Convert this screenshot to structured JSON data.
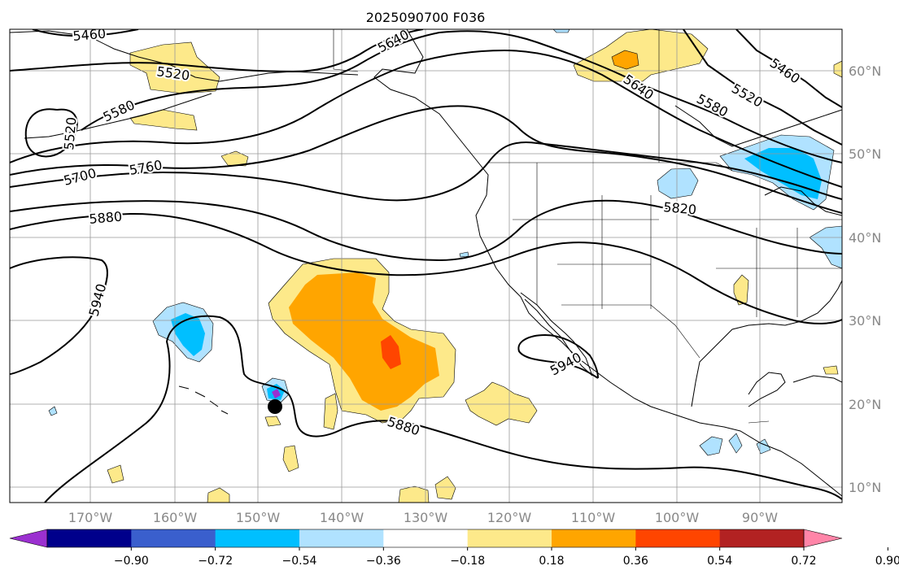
{
  "title": "2025090700 F036",
  "lon_labels": [
    "170°W",
    "160°W",
    "150°W",
    "140°W",
    "130°W",
    "120°W",
    "110°W",
    "100°W",
    "90°W"
  ],
  "lat_labels": [
    "60°N",
    "50°N",
    "40°N",
    "30°N",
    "20°N",
    "10°N"
  ],
  "contour_labels": [
    "5460",
    "5460",
    "5520",
    "5520",
    "5520",
    "5580",
    "5580",
    "5640",
    "5640",
    "5700",
    "5760",
    "5820",
    "5880",
    "5880",
    "5940",
    "5940"
  ],
  "colorbar": {
    "ticks": [
      "−0.90",
      "−0.72",
      "−0.54",
      "−0.36",
      "−0.18",
      "0.18",
      "0.36",
      "0.54",
      "0.72",
      "0.90"
    ],
    "colors": [
      "#9b30d0",
      "#00008b",
      "#3a5fcd",
      "#00bfff",
      "#b0e2ff",
      "#ffffff",
      "#fde98a",
      "#ffa500",
      "#ff4500",
      "#b22222",
      "#ff85a8"
    ]
  },
  "colors": {
    "light_yellow": "#fde98a",
    "orange": "#ffa500",
    "red_orange": "#ff4500",
    "light_blue": "#b0e2ff",
    "deep_sky_blue": "#00bfff",
    "purple": "#9b30d0"
  },
  "marker": "storm-center-dot"
}
